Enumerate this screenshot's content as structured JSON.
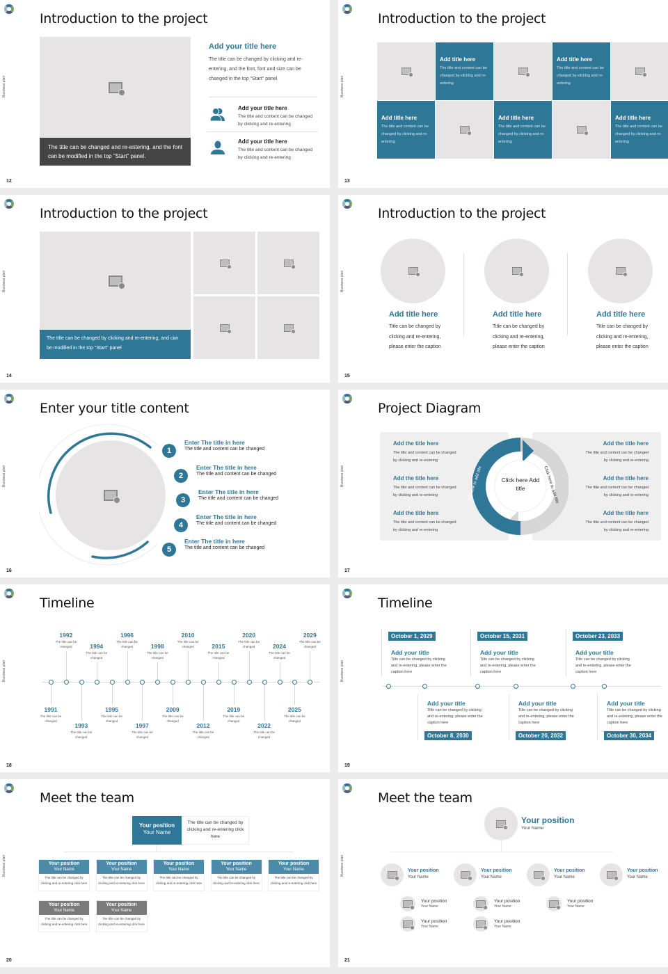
{
  "common": {
    "side_label": "Business plan",
    "accent": "#2e7796",
    "placeholder_bg": "#e6e4e4"
  },
  "slides": [
    {
      "number": "12",
      "title": "Introduction to the project",
      "caption": "The title can be changed and re-entering, and the font can be modified in the top \"Start\" panel.",
      "heading": "Add your title here",
      "body": "The title can be changed by clicking and re-entering, and the font, font and size can be changed in the top \"Start\" panel",
      "items": [
        {
          "icon": "users-icon",
          "title": "Add your title here",
          "text": "The title and content can be changed by clicking and re-entering"
        },
        {
          "icon": "user-icon",
          "title": "Add your title here",
          "text": "The title and content can be changed by clicking and re-entering"
        }
      ]
    },
    {
      "number": "13",
      "title": "Introduction to the project",
      "tiles": [
        {
          "type": "image"
        },
        {
          "type": "text",
          "title": "Add title here",
          "text": "The title and content can be changed by clicking and re-entering"
        },
        {
          "type": "image"
        },
        {
          "type": "text",
          "title": "Add title here",
          "text": "The title and content can be changed by clicking and re-entering"
        },
        {
          "type": "image"
        },
        {
          "type": "text",
          "title": "Add title here",
          "text": "The title and content can be changed by clicking and re-entering"
        },
        {
          "type": "image"
        },
        {
          "type": "text",
          "title": "Add title here",
          "text": "The title and content can be changed by clicking and re-entering"
        },
        {
          "type": "image"
        },
        {
          "type": "text",
          "title": "Add title here",
          "text": "The title and content can be changed by clicking and re-entering"
        }
      ]
    },
    {
      "number": "14",
      "title": "Introduction to the project",
      "caption": "The title can be changed by clicking and re-entering, and can be modified in the top \"Start\" panel"
    },
    {
      "number": "15",
      "title": "Introduction to the project",
      "columns": [
        {
          "title": "Add title here",
          "text": "Title can be changed by clicking and re-entering, please enter the caption"
        },
        {
          "title": "Add title here",
          "text": "Title can be changed by clicking and re-entering, please enter the caption"
        },
        {
          "title": "Add title here",
          "text": "Title can be changed by clicking and re-entering, please enter the caption"
        }
      ]
    },
    {
      "number": "16",
      "title": "Enter your title content",
      "items": [
        {
          "n": "1",
          "title": "Enter The title in here",
          "text": "The title and content can be changed"
        },
        {
          "n": "2",
          "title": "Enter The title in here",
          "text": "The title and content can be changed"
        },
        {
          "n": "3",
          "title": "Enter The title in here",
          "text": "The title and content can be changed"
        },
        {
          "n": "4",
          "title": "Enter The title in here",
          "text": "The title and content can be changed"
        },
        {
          "n": "5",
          "title": "Enter The title in here",
          "text": "The title and content can be changed"
        }
      ]
    },
    {
      "number": "17",
      "title": "Project Diagram",
      "center": "Click here Add title",
      "arrow_left": "Click here to add title",
      "arrow_right": "Click here to add title",
      "left": [
        {
          "title": "Add the title here",
          "text": "The title and content can be changed by clicking and re-entering"
        },
        {
          "title": "Add the title here",
          "text": "The title and content can be changed by clicking and re-entering"
        },
        {
          "title": "Add the title here",
          "text": "The title and content can be changed by clicking and re-entering"
        }
      ],
      "right": [
        {
          "title": "Add the title here",
          "text": "The title and content can be changed by clicking and re-entering"
        },
        {
          "title": "Add the title here",
          "text": "The title and content can be changed by clicking and re-entering"
        },
        {
          "title": "Add the title here",
          "text": "The title and content can be changed by clicking and re-entering"
        }
      ]
    },
    {
      "number": "18",
      "title": "Timeline",
      "events": [
        {
          "year": "1991",
          "pos": "below",
          "level": 1,
          "text": "The title can be changed"
        },
        {
          "year": "1992",
          "pos": "above",
          "level": 1,
          "text": "The title can be changed"
        },
        {
          "year": "1993",
          "pos": "below",
          "level": 2,
          "text": "The title can be changed"
        },
        {
          "year": "1994",
          "pos": "above",
          "level": 2,
          "text": "The title can be changed"
        },
        {
          "year": "1995",
          "pos": "below",
          "level": 1,
          "text": "The title can be changed"
        },
        {
          "year": "1996",
          "pos": "above",
          "level": 1,
          "text": "The title can be changed"
        },
        {
          "year": "1997",
          "pos": "below",
          "level": 2,
          "text": "The title can be changed"
        },
        {
          "year": "1998",
          "pos": "above",
          "level": 2,
          "text": "The title can be changed"
        },
        {
          "year": "2009",
          "pos": "below",
          "level": 1,
          "text": "The title can be changed"
        },
        {
          "year": "2010",
          "pos": "above",
          "level": 1,
          "text": "The title can be changed"
        },
        {
          "year": "2012",
          "pos": "below",
          "level": 2,
          "text": "The title can be changed"
        },
        {
          "year": "2015",
          "pos": "above",
          "level": 2,
          "text": "The title can be changed"
        },
        {
          "year": "2019",
          "pos": "below",
          "level": 1,
          "text": "The title can be changed"
        },
        {
          "year": "2020",
          "pos": "above",
          "level": 1,
          "text": "The title can be changed"
        },
        {
          "year": "2022",
          "pos": "below",
          "level": 2,
          "text": "The title can be changed"
        },
        {
          "year": "2024",
          "pos": "above",
          "level": 2,
          "text": "The title can be changed"
        },
        {
          "year": "2025",
          "pos": "below",
          "level": 1,
          "text": "The title can be changed"
        },
        {
          "year": "2029",
          "pos": "above",
          "level": 1,
          "text": "The title can be changed"
        }
      ]
    },
    {
      "number": "19",
      "title": "Timeline",
      "events": [
        {
          "date": "October 1, 2029",
          "pos": "above",
          "title": "Add your title",
          "text": "Title can be changed by clicking and re-entering, please enter the caption here"
        },
        {
          "date": "October 8, 2030",
          "pos": "below",
          "title": "Add your title",
          "text": "Title can be changed by clicking and re-entering, please enter the caption here"
        },
        {
          "date": "October 15, 2031",
          "pos": "above",
          "title": "Add your title",
          "text": "Title can be changed by clicking and re-entering, please enter the caption here"
        },
        {
          "date": "October 20, 2032",
          "pos": "below",
          "title": "Add your title",
          "text": "Title can be changed by clicking and re-entering, please enter the caption here"
        },
        {
          "date": "October 23, 2033",
          "pos": "above",
          "title": "Add your title",
          "text": "Title can be changed by clicking and re-entering, please enter the caption here"
        },
        {
          "date": "October 30, 2034",
          "pos": "below",
          "title": "Add your title",
          "text": "Title can be changed by clicking and re-entering, please enter the caption here"
        }
      ]
    },
    {
      "number": "20",
      "title": "Meet the team",
      "head": {
        "position": "Your position",
        "name": "Your Name",
        "text": "The title can be changed by clicking and re-entering click here"
      },
      "members": [
        {
          "position": "Your position",
          "name": "Your Name",
          "text": "The title can be changed by clicking and re-entering click here",
          "color": "teal"
        },
        {
          "position": "Your position",
          "name": "Your Name",
          "text": "The title can be changed by clicking and re-entering click here",
          "color": "teal"
        },
        {
          "position": "Your position",
          "name": "Your Name",
          "text": "The title can be changed by clicking and re-entering click here",
          "color": "teal"
        },
        {
          "position": "Your position",
          "name": "Your Name",
          "text": "The title can be changed by clicking and re-entering click here",
          "color": "teal"
        },
        {
          "position": "Your position",
          "name": "Your Name",
          "text": "The title can be changed by clicking and re-entering click here",
          "color": "teal"
        },
        {
          "position": "Your position",
          "name": "Your Name",
          "text": "The title can be changed by clicking and re-entering click here",
          "color": "gray"
        },
        {
          "position": "Your position",
          "name": "Your Name",
          "text": "The title can be changed by clicking and re-entering click here",
          "color": "gray"
        }
      ]
    },
    {
      "number": "21",
      "title": "Meet the team",
      "head": {
        "position": "Your position",
        "name": "Your Name"
      },
      "level2": [
        {
          "position": "Your position",
          "name": "Your Name"
        },
        {
          "position": "Your position",
          "name": "Your Name"
        },
        {
          "position": "Your position",
          "name": "Your Name"
        },
        {
          "position": "Your position",
          "name": "Your Name"
        }
      ],
      "level3": [
        {
          "position": "Your position",
          "name": "Your Name",
          "col": 0,
          "row": 0
        },
        {
          "position": "Your position",
          "name": "Your Name",
          "col": 0,
          "row": 1
        },
        {
          "position": "Your position",
          "name": "Your Name",
          "col": 1,
          "row": 0
        },
        {
          "position": "Your position",
          "name": "Your Name",
          "col": 1,
          "row": 1
        },
        {
          "position": "Your position",
          "name": "Your Name",
          "col": 2,
          "row": 0
        }
      ]
    }
  ]
}
